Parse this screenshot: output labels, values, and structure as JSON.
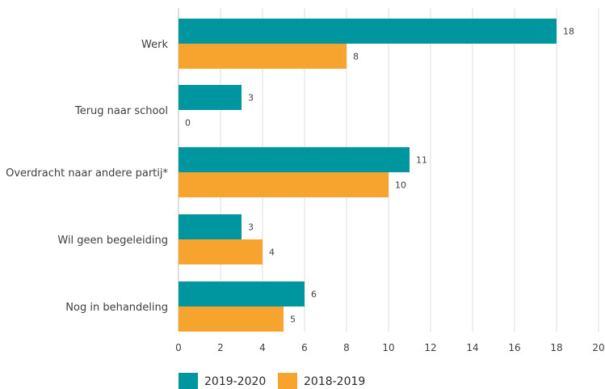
{
  "chart_data": {
    "type": "bar",
    "orientation": "horizontal",
    "categories": [
      "Werk",
      "Terug naar school",
      "Overdracht naar andere partij*",
      "Wil geen begeleiding",
      "Nog in behandeling"
    ],
    "series": [
      {
        "name": "2019-2020",
        "color": "#00969f",
        "values": [
          18,
          3,
          11,
          3,
          6
        ]
      },
      {
        "name": "2018-2019",
        "color": "#f7a42e",
        "values": [
          8,
          0,
          10,
          4,
          5
        ]
      }
    ],
    "xlim": [
      0,
      20
    ],
    "xticks": [
      "0",
      "2",
      "4",
      "6",
      "8",
      "10",
      "12",
      "14",
      "16",
      "18",
      "20"
    ],
    "grid": "vertical",
    "legend_position": "bottom"
  }
}
